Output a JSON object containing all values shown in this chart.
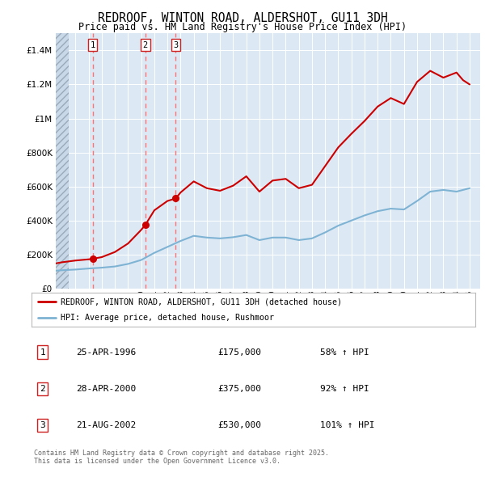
{
  "title": "REDROOF, WINTON ROAD, ALDERSHOT, GU11 3DH",
  "subtitle": "Price paid vs. HM Land Registry's House Price Index (HPI)",
  "bg_color": "#dce9f5",
  "legend_line1": "REDROOF, WINTON ROAD, ALDERSHOT, GU11 3DH (detached house)",
  "legend_line2": "HPI: Average price, detached house, Rushmoor",
  "footer": "Contains HM Land Registry data © Crown copyright and database right 2025.\nThis data is licensed under the Open Government Licence v3.0.",
  "transactions": [
    {
      "num": 1,
      "date": "25-APR-1996",
      "price": 175000,
      "hpi_pct": "58% ↑ HPI",
      "year": 1996.31
    },
    {
      "num": 2,
      "date": "28-APR-2000",
      "price": 375000,
      "hpi_pct": "92% ↑ HPI",
      "year": 2000.32
    },
    {
      "num": 3,
      "date": "21-AUG-2002",
      "price": 530000,
      "hpi_pct": "101% ↑ HPI",
      "year": 2002.63
    }
  ],
  "red_line_color": "#cc0000",
  "blue_line_color": "#7fb3d3",
  "marker_color": "#cc0000",
  "dashed_line_color": "#ff6666",
  "ylim": [
    0,
    1500000
  ],
  "yticks": [
    0,
    200000,
    400000,
    600000,
    800000,
    1000000,
    1200000,
    1400000
  ],
  "ytick_labels": [
    "£0",
    "£200K",
    "£400K",
    "£600K",
    "£800K",
    "£1M",
    "£1.2M",
    "£1.4M"
  ],
  "xmin": 1993.5,
  "xmax": 2025.8,
  "hatch_end": 1994.5,
  "hpi_years": [
    1993.5,
    1994,
    1994.5,
    1995,
    1996,
    1997,
    1998,
    1999,
    2000,
    2001,
    2002,
    2003,
    2004,
    2005,
    2006,
    2007,
    2008,
    2009,
    2010,
    2011,
    2012,
    2013,
    2014,
    2015,
    2016,
    2017,
    2018,
    2019,
    2020,
    2021,
    2022,
    2023,
    2024,
    2025
  ],
  "hpi_values": [
    105000,
    108000,
    110000,
    112000,
    118000,
    123000,
    130000,
    145000,
    168000,
    210000,
    245000,
    280000,
    310000,
    300000,
    295000,
    302000,
    315000,
    285000,
    300000,
    300000,
    285000,
    295000,
    330000,
    370000,
    400000,
    430000,
    455000,
    470000,
    465000,
    515000,
    570000,
    580000,
    570000,
    590000
  ],
  "red_years": [
    1993.5,
    1994,
    1994.5,
    1995,
    1996,
    1996.31,
    1997,
    1998,
    1999,
    2000,
    2000.32,
    2001,
    2002,
    2002.63,
    2003,
    2004,
    2005,
    2006,
    2007,
    2008,
    2009,
    2010,
    2011,
    2012,
    2013,
    2014,
    2015,
    2016,
    2017,
    2018,
    2019,
    2020,
    2021,
    2022,
    2023,
    2024,
    2024.5,
    2025
  ],
  "red_values": [
    148000,
    155000,
    160000,
    165000,
    172000,
    175000,
    185000,
    215000,
    265000,
    345000,
    375000,
    460000,
    515000,
    530000,
    565000,
    630000,
    590000,
    575000,
    605000,
    660000,
    570000,
    635000,
    645000,
    590000,
    610000,
    720000,
    830000,
    910000,
    985000,
    1070000,
    1120000,
    1085000,
    1215000,
    1280000,
    1240000,
    1270000,
    1225000,
    1200000
  ]
}
